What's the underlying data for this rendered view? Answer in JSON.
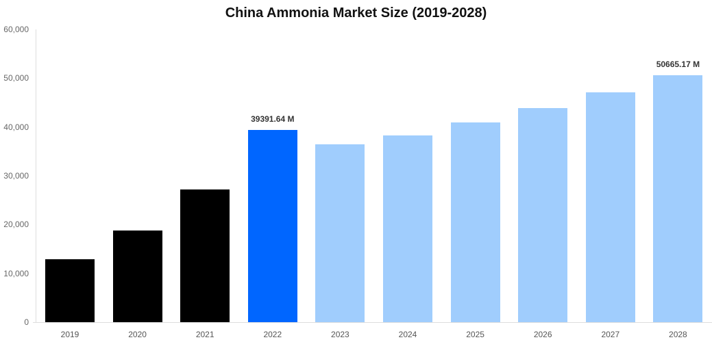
{
  "chart_data": {
    "type": "bar",
    "title": "China Ammonia Market Size (2019-2028)",
    "xlabel": "",
    "ylabel": "",
    "ylim": [
      0,
      60000
    ],
    "yticks": [
      0,
      10000,
      20000,
      30000,
      40000,
      50000,
      60000
    ],
    "ytick_labels": [
      "0",
      "10,000",
      "20,000",
      "30,000",
      "40,000",
      "50,000",
      "60,000"
    ],
    "grid": false,
    "legend": null,
    "categories": [
      "2019",
      "2020",
      "2021",
      "2022",
      "2023",
      "2024",
      "2025",
      "2026",
      "2027",
      "2028"
    ],
    "values": [
      12900,
      18790,
      27200,
      39391.64,
      36450,
      38270,
      40940,
      43880,
      47100,
      50665.17
    ],
    "bar_colors": [
      "#000000",
      "#000000",
      "#000000",
      "#0066ff",
      "#a0cdfd",
      "#a0cdfd",
      "#a0cdfd",
      "#a0cdfd",
      "#a0cdfd",
      "#a0cdfd"
    ],
    "annotations": [
      {
        "category": "2022",
        "text": "39391.64 M"
      },
      {
        "category": "2028",
        "text": "50665.17 M"
      }
    ]
  }
}
